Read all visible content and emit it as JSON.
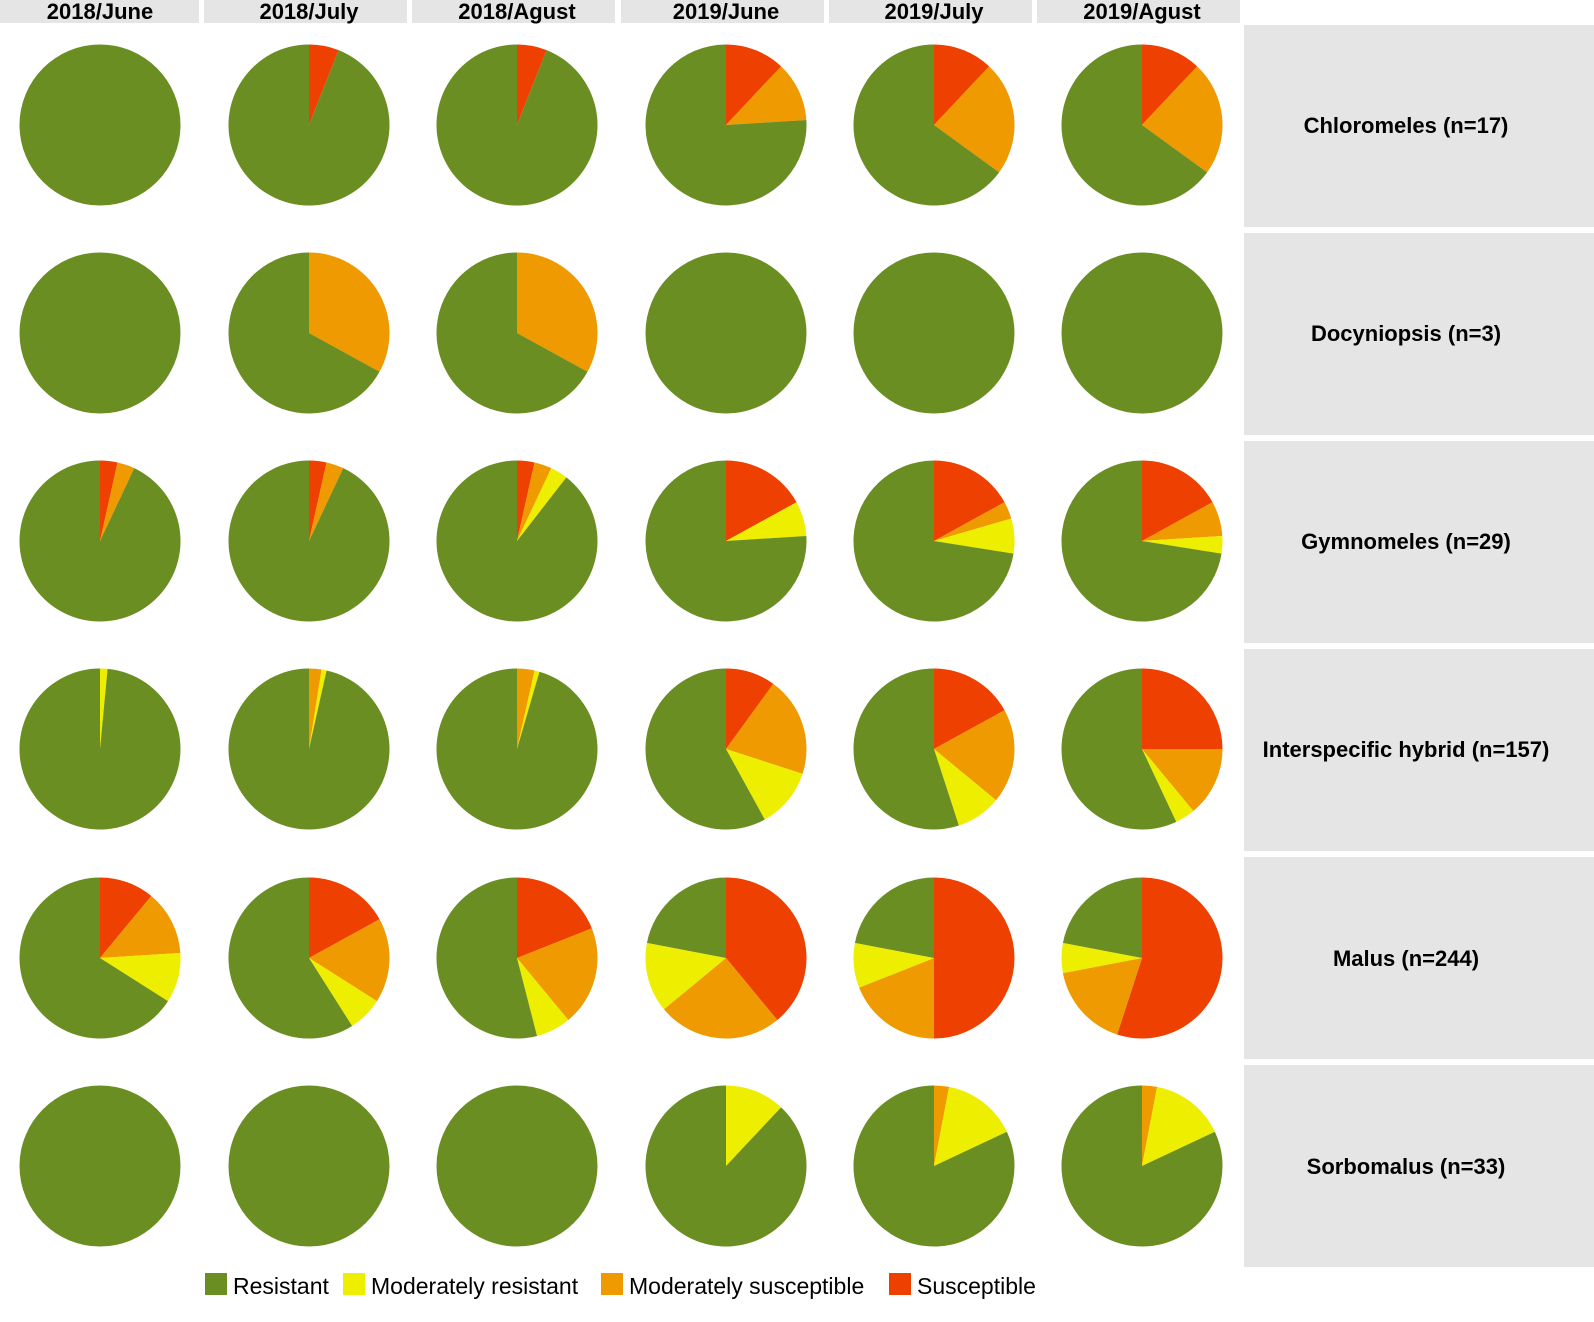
{
  "chart_data": {
    "type": "pie",
    "layout": "facet-grid",
    "columns": [
      "2018/June",
      "2018/July",
      "2018/Agust",
      "2019/June",
      "2019/July",
      "2019/Agust"
    ],
    "rows": [
      "Chloromeles (n=17)",
      "Docyniopsis (n=3)",
      "Gymnomeles (n=29)",
      "Interspecific hybrid (n=157)",
      "Malus (n=244)",
      "Sorbomalus (n=33)"
    ],
    "categories": [
      "Susceptible",
      "Moderately susceptible",
      "Moderately resistant",
      "Resistant"
    ],
    "legend": {
      "position": "bottom",
      "items": [
        {
          "label": "Resistant",
          "key": "resistant"
        },
        {
          "label": "Moderately resistant",
          "key": "moderately_resistant"
        },
        {
          "label": "Moderately susceptible",
          "key": "moderately_susceptible"
        },
        {
          "label": "Susceptible",
          "key": "susceptible"
        }
      ]
    },
    "colors": {
      "susceptible": "#ee4000",
      "moderately_susceptible": "#ee9a00",
      "moderately_resistant": "#eeee00",
      "resistant": "#6b8e23",
      "strip_fill": "#e5e5e5"
    },
    "units": "percent of accessions",
    "values": [
      [
        [
          0,
          0,
          0,
          100
        ],
        [
          6,
          0,
          0,
          94
        ],
        [
          6,
          0,
          0,
          94
        ],
        [
          12,
          12,
          0,
          76
        ],
        [
          12,
          23,
          0,
          65
        ],
        [
          12,
          23,
          0,
          65
        ]
      ],
      [
        [
          0,
          0,
          0,
          100
        ],
        [
          0,
          33,
          0,
          67
        ],
        [
          0,
          33,
          0,
          67
        ],
        [
          0,
          0,
          0,
          100
        ],
        [
          0,
          0,
          0,
          100
        ],
        [
          0,
          0,
          0,
          100
        ]
      ],
      [
        [
          3.5,
          3.5,
          0,
          93
        ],
        [
          3.5,
          3.5,
          0,
          93
        ],
        [
          3.5,
          3.5,
          3.5,
          89.5
        ],
        [
          17,
          0,
          7,
          76
        ],
        [
          17,
          3.5,
          7,
          72.5
        ],
        [
          17,
          7,
          3.5,
          72.5
        ]
      ],
      [
        [
          0,
          0,
          1.5,
          98.5
        ],
        [
          0,
          2.5,
          1,
          96.5
        ],
        [
          0,
          3.5,
          1,
          95.5
        ],
        [
          10,
          20,
          12,
          58
        ],
        [
          17,
          19,
          9,
          55
        ],
        [
          25,
          14,
          4,
          57
        ]
      ],
      [
        [
          11,
          13,
          10,
          66
        ],
        [
          17,
          17,
          7,
          59
        ],
        [
          19,
          20,
          7,
          54
        ],
        [
          39,
          25,
          14,
          22
        ],
        [
          50,
          19,
          9,
          22
        ],
        [
          55,
          17,
          6,
          22
        ]
      ],
      [
        [
          0,
          0,
          0,
          100
        ],
        [
          0,
          0,
          0,
          100
        ],
        [
          0,
          0,
          0,
          100
        ],
        [
          0,
          0,
          12,
          88
        ],
        [
          0,
          3,
          15,
          82
        ],
        [
          0,
          3,
          15,
          82
        ]
      ]
    ]
  }
}
